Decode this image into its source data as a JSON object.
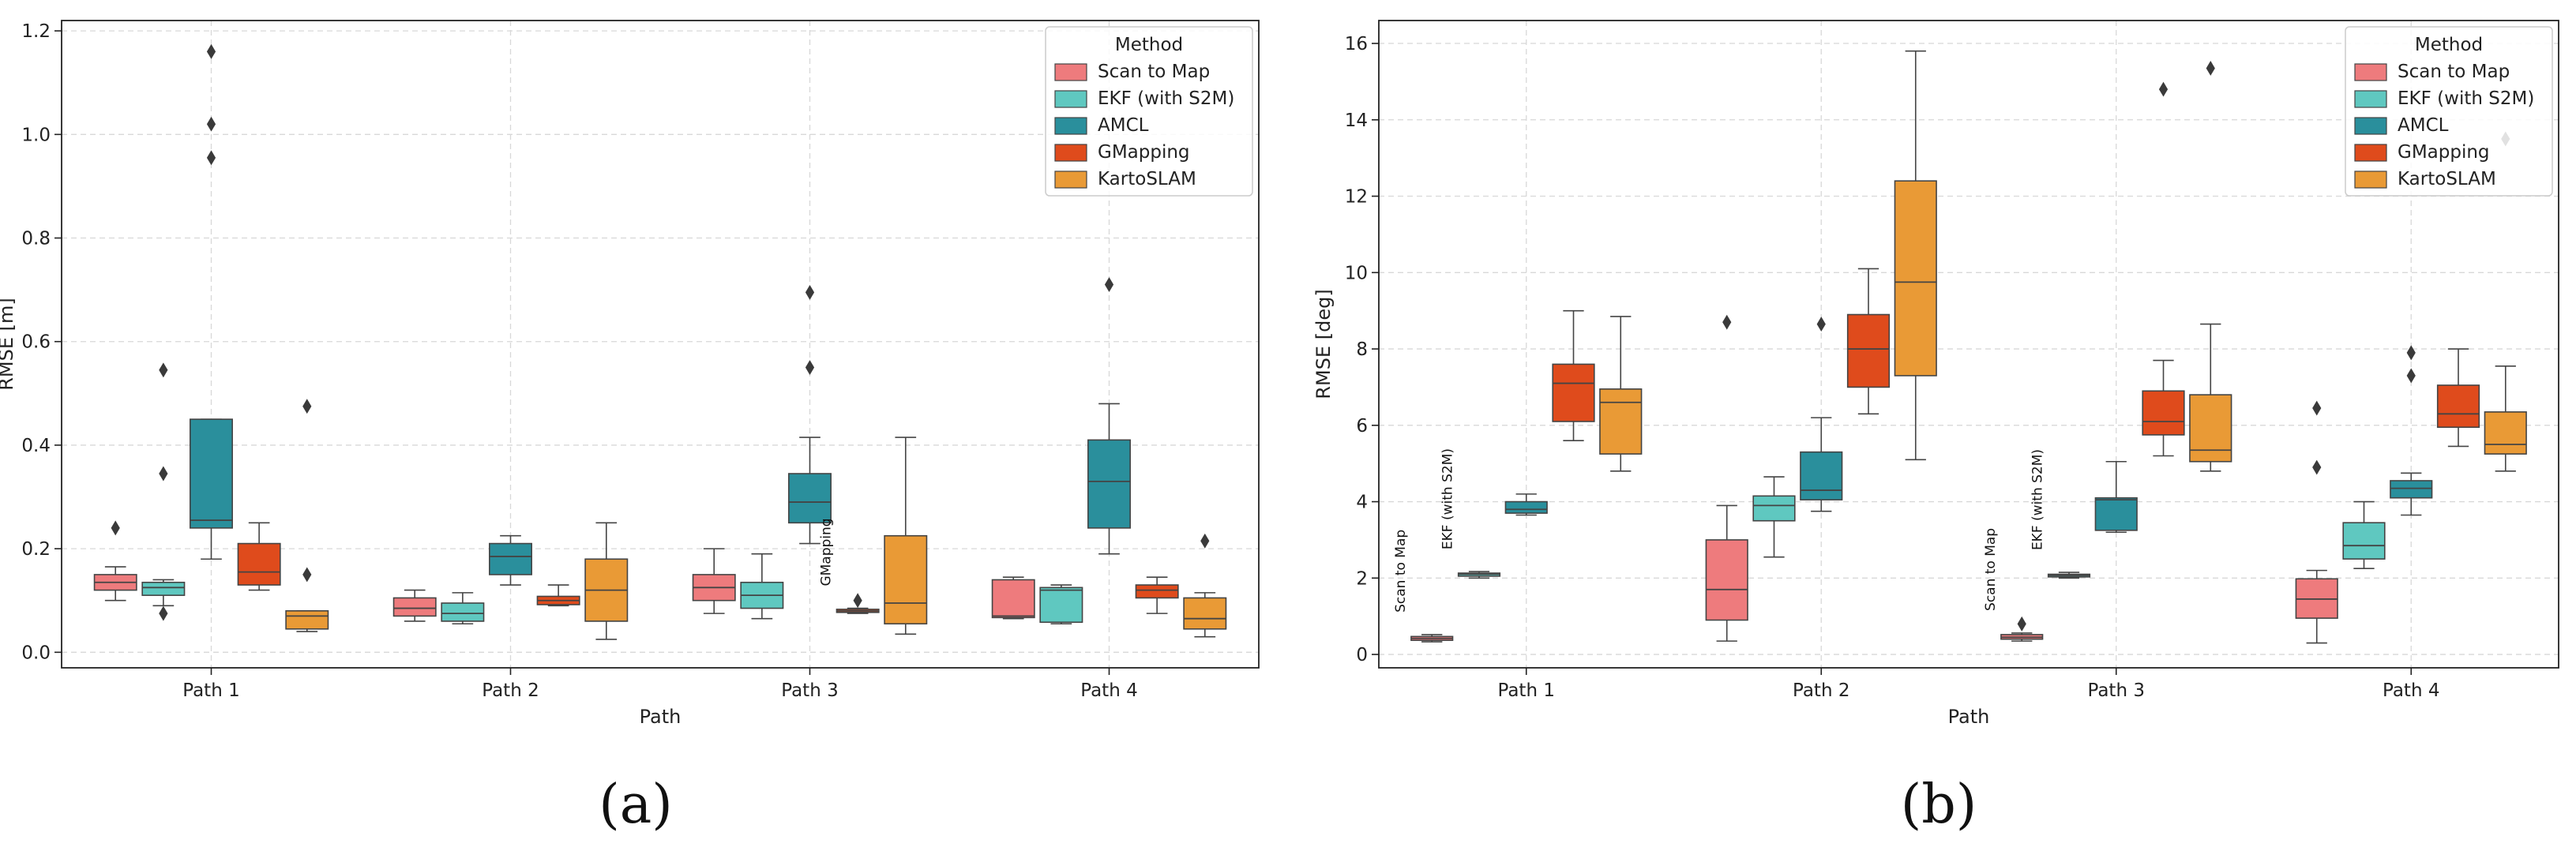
{
  "chart_data": [
    {
      "type": "box",
      "caption": "(a)",
      "xlabel": "Path",
      "ylabel": "RMSE [m]",
      "ylim": [
        -0.03,
        1.22
      ],
      "yticks": [
        "0.0",
        "0.2",
        "0.4",
        "0.6",
        "0.8",
        "1.0",
        "1.2"
      ],
      "categories": [
        "Path 1",
        "Path 2",
        "Path 3",
        "Path 4"
      ],
      "grid": true,
      "legend": {
        "title": "Method",
        "placement": "top-right",
        "entries": [
          "Scan to Map",
          "EKF (with S2M)",
          "AMCL",
          "GMapping",
          "KartoSLAM"
        ]
      },
      "series": [
        {
          "name": "Scan to Map",
          "color": "#ee7b7d",
          "boxes": [
            {
              "min": 0.1,
              "q1": 0.12,
              "med": 0.135,
              "q3": 0.15,
              "max": 0.165,
              "outliers": [
                0.24
              ]
            },
            {
              "min": 0.06,
              "q1": 0.07,
              "med": 0.085,
              "q3": 0.105,
              "max": 0.12,
              "outliers": []
            },
            {
              "min": 0.075,
              "q1": 0.1,
              "med": 0.125,
              "q3": 0.15,
              "max": 0.2,
              "outliers": []
            },
            {
              "min": 0.065,
              "q1": 0.067,
              "med": 0.07,
              "q3": 0.14,
              "max": 0.145,
              "outliers": []
            }
          ]
        },
        {
          "name": "EKF (with S2M)",
          "color": "#5fc8c0",
          "boxes": [
            {
              "min": 0.09,
              "q1": 0.11,
              "med": 0.125,
              "q3": 0.135,
              "max": 0.14,
              "outliers": [
                0.075,
                0.345,
                0.545
              ]
            },
            {
              "min": 0.055,
              "q1": 0.06,
              "med": 0.075,
              "q3": 0.095,
              "max": 0.115,
              "outliers": []
            },
            {
              "min": 0.065,
              "q1": 0.085,
              "med": 0.11,
              "q3": 0.135,
              "max": 0.19,
              "outliers": []
            },
            {
              "min": 0.055,
              "q1": 0.058,
              "med": 0.12,
              "q3": 0.125,
              "max": 0.13,
              "outliers": []
            }
          ]
        },
        {
          "name": "AMCL",
          "color": "#2a8f9c",
          "boxes": [
            {
              "min": 0.18,
              "q1": 0.24,
              "med": 0.255,
              "q3": 0.45,
              "max": 0.45,
              "outliers": [
                0.955,
                1.02,
                1.16
              ]
            },
            {
              "min": 0.13,
              "q1": 0.15,
              "med": 0.185,
              "q3": 0.21,
              "max": 0.225,
              "outliers": []
            },
            {
              "min": 0.21,
              "q1": 0.25,
              "med": 0.29,
              "q3": 0.345,
              "max": 0.415,
              "outliers": [
                0.55,
                0.695
              ]
            },
            {
              "min": 0.19,
              "q1": 0.24,
              "med": 0.33,
              "q3": 0.41,
              "max": 0.48,
              "outliers": [
                0.71
              ]
            }
          ]
        },
        {
          "name": "GMapping",
          "color": "#df4b1c",
          "boxes": [
            {
              "min": 0.12,
              "q1": 0.13,
              "med": 0.155,
              "q3": 0.21,
              "max": 0.25,
              "outliers": []
            },
            {
              "min": 0.09,
              "q1": 0.092,
              "med": 0.1,
              "q3": 0.108,
              "max": 0.13,
              "outliers": []
            },
            {
              "min": 0.075,
              "q1": 0.077,
              "med": 0.08,
              "q3": 0.083,
              "max": 0.085,
              "outliers": [
                0.1
              ]
            },
            {
              "min": 0.075,
              "q1": 0.105,
              "med": 0.12,
              "q3": 0.13,
              "max": 0.145,
              "outliers": []
            }
          ]
        },
        {
          "name": "KartoSLAM",
          "color": "#e99a36",
          "boxes": [
            {
              "min": 0.04,
              "q1": 0.045,
              "med": 0.07,
              "q3": 0.08,
              "max": 0.08,
              "outliers": [
                0.15,
                0.475
              ]
            },
            {
              "min": 0.025,
              "q1": 0.06,
              "med": 0.12,
              "q3": 0.18,
              "max": 0.25,
              "outliers": []
            },
            {
              "min": 0.035,
              "q1": 0.055,
              "med": 0.095,
              "q3": 0.225,
              "max": 0.415,
              "outliers": []
            },
            {
              "min": 0.03,
              "q1": 0.045,
              "med": 0.065,
              "q3": 0.105,
              "max": 0.115,
              "outliers": [
                0.215
              ]
            }
          ]
        }
      ],
      "annotations": [
        {
          "text": "GMapping",
          "category": 2,
          "series": 3
        }
      ]
    },
    {
      "type": "box",
      "caption": "(b)",
      "xlabel": "Path",
      "ylabel": "RMSE [deg]",
      "ylim": [
        -0.35,
        16.6
      ],
      "yticks": [
        "0",
        "2",
        "4",
        "6",
        "8",
        "10",
        "12",
        "14",
        "16"
      ],
      "categories": [
        "Path 1",
        "Path 2",
        "Path 3",
        "Path 4"
      ],
      "grid": true,
      "legend": {
        "title": "Method",
        "placement": "top-right",
        "entries": [
          "Scan to Map",
          "EKF (with S2M)",
          "AMCL",
          "GMapping",
          "KartoSLAM"
        ]
      },
      "series": [
        {
          "name": "Scan to Map",
          "color": "#ee7b7d",
          "boxes": [
            {
              "min": 0.33,
              "q1": 0.37,
              "med": 0.42,
              "q3": 0.47,
              "max": 0.52,
              "outliers": []
            },
            {
              "min": 0.35,
              "q1": 0.9,
              "med": 1.7,
              "q3": 3.0,
              "max": 3.9,
              "outliers": [
                8.7
              ]
            },
            {
              "min": 0.35,
              "q1": 0.4,
              "med": 0.45,
              "q3": 0.52,
              "max": 0.56,
              "outliers": [
                0.8
              ]
            },
            {
              "min": 0.3,
              "q1": 0.95,
              "med": 1.45,
              "q3": 1.98,
              "max": 2.2,
              "outliers": [
                4.9,
                6.45
              ]
            }
          ]
        },
        {
          "name": "EKF (with S2M)",
          "color": "#5fc8c0",
          "boxes": [
            {
              "min": 2.0,
              "q1": 2.05,
              "med": 2.1,
              "q3": 2.13,
              "max": 2.17,
              "outliers": []
            },
            {
              "min": 2.55,
              "q1": 3.5,
              "med": 3.9,
              "q3": 4.15,
              "max": 4.65,
              "outliers": []
            },
            {
              "min": 2.0,
              "q1": 2.03,
              "med": 2.07,
              "q3": 2.1,
              "max": 2.15,
              "outliers": []
            },
            {
              "min": 2.25,
              "q1": 2.5,
              "med": 2.85,
              "q3": 3.45,
              "max": 4.0,
              "outliers": []
            }
          ]
        },
        {
          "name": "AMCL",
          "color": "#2a8f9c",
          "boxes": [
            {
              "min": 3.65,
              "q1": 3.7,
              "med": 3.8,
              "q3": 4.0,
              "max": 4.2,
              "outliers": []
            },
            {
              "min": 3.75,
              "q1": 4.05,
              "med": 4.3,
              "q3": 5.3,
              "max": 6.2,
              "outliers": [
                8.65
              ]
            },
            {
              "min": 3.2,
              "q1": 3.25,
              "med": 4.05,
              "q3": 4.1,
              "max": 5.05,
              "outliers": []
            },
            {
              "min": 3.65,
              "q1": 4.1,
              "med": 4.35,
              "q3": 4.55,
              "max": 4.75,
              "outliers": [
                7.3,
                7.9
              ]
            }
          ]
        },
        {
          "name": "GMapping",
          "color": "#df4b1c",
          "boxes": [
            {
              "min": 5.6,
              "q1": 6.1,
              "med": 7.1,
              "q3": 7.6,
              "max": 9.0,
              "outliers": []
            },
            {
              "min": 6.3,
              "q1": 7.0,
              "med": 8.0,
              "q3": 8.9,
              "max": 10.1,
              "outliers": []
            },
            {
              "min": 5.2,
              "q1": 5.75,
              "med": 6.1,
              "q3": 6.9,
              "max": 7.7,
              "outliers": [
                14.8
              ]
            },
            {
              "min": 5.45,
              "q1": 5.95,
              "med": 6.3,
              "q3": 7.05,
              "max": 8.0,
              "outliers": []
            }
          ]
        },
        {
          "name": "KartoSLAM",
          "color": "#e99a36",
          "boxes": [
            {
              "min": 4.8,
              "q1": 5.25,
              "med": 6.6,
              "q3": 6.95,
              "max": 8.85,
              "outliers": []
            },
            {
              "min": 5.1,
              "q1": 7.3,
              "med": 9.75,
              "q3": 12.4,
              "max": 15.8,
              "outliers": []
            },
            {
              "min": 4.8,
              "q1": 5.05,
              "med": 5.35,
              "q3": 6.8,
              "max": 8.65,
              "outliers": [
                15.35
              ]
            },
            {
              "min": 4.8,
              "q1": 5.25,
              "med": 5.5,
              "q3": 6.35,
              "max": 7.55,
              "outliers": [
                13.5
              ]
            }
          ]
        }
      ],
      "annotations": [
        {
          "text": "Scan to Map",
          "category": 0,
          "series": 0
        },
        {
          "text": "EKF (with S2M)",
          "category": 0,
          "series": 1
        },
        {
          "text": "Scan to Map",
          "category": 2,
          "series": 0
        },
        {
          "text": "EKF (with S2M)",
          "category": 2,
          "series": 1
        }
      ]
    }
  ]
}
